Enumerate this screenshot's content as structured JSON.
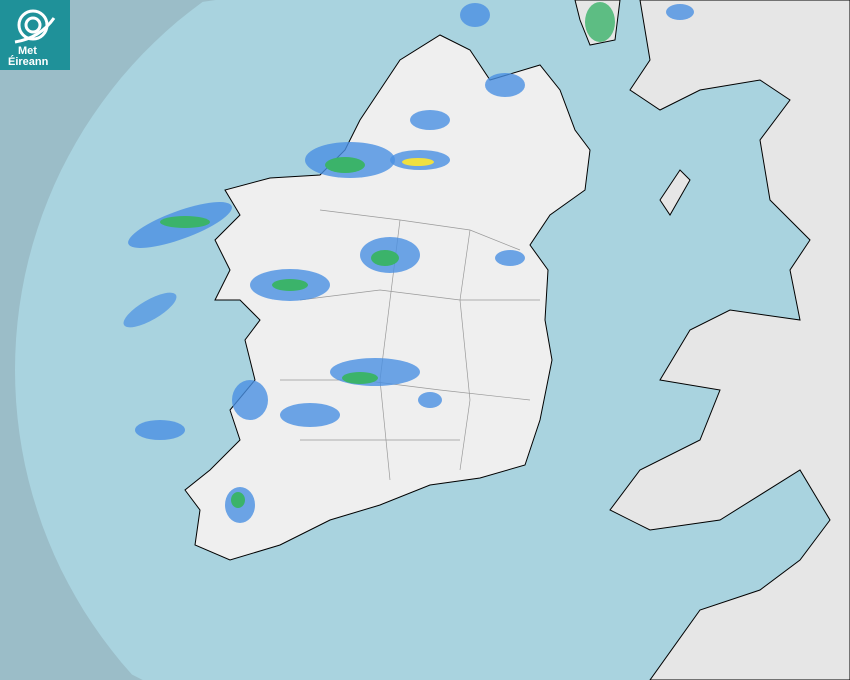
{
  "logo": {
    "line1": "Met",
    "line2": "Éireann",
    "icon": "swirl-icon"
  },
  "map": {
    "type": "rainfall-radar",
    "colors": {
      "sea_outside_coverage": "#9bbdc8",
      "sea_in_coverage": "#a9d3df",
      "land": "#ececec",
      "rain_light": "#4a90e2",
      "rain_moderate": "#3bb36a",
      "rain_heavy": "#f0e040"
    }
  }
}
